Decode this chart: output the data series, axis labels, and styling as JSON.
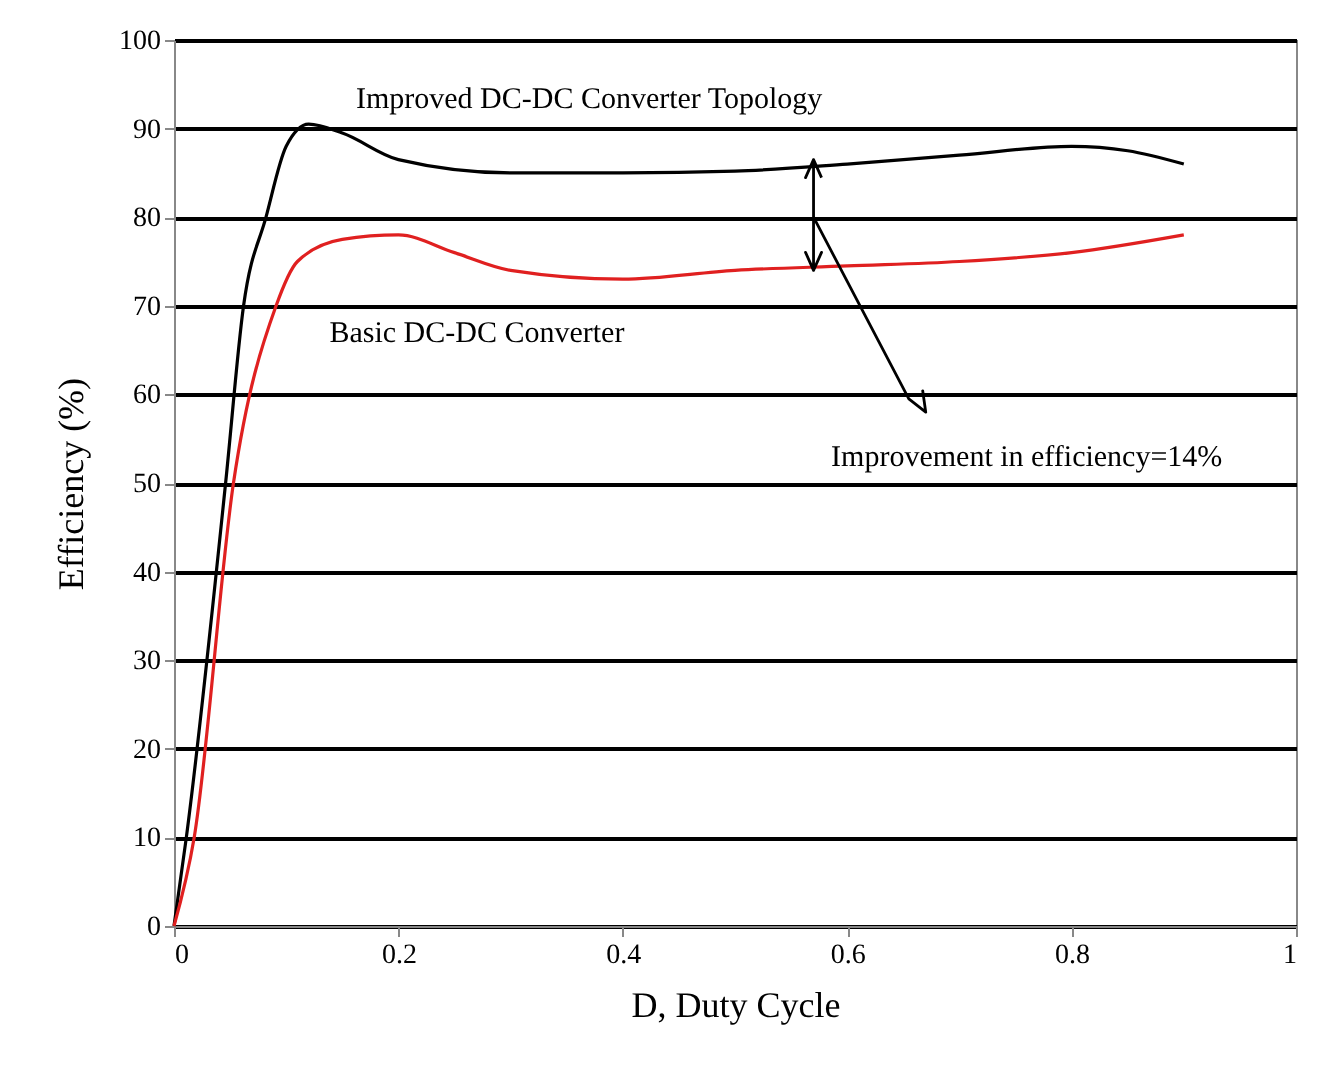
{
  "chart_data": {
    "type": "line",
    "xlabel": "D, Duty Cycle",
    "ylabel": "Efficiency  (%)",
    "xlim": [
      0,
      1
    ],
    "xticks": [
      0,
      0.2,
      0.4,
      0.6,
      0.8,
      1
    ],
    "ylim": [
      0,
      100
    ],
    "yticks": [
      0,
      10,
      20,
      30,
      40,
      50,
      60,
      70,
      80,
      90,
      100
    ],
    "grid": "y",
    "legend": false,
    "series": [
      {
        "name": "Improved DC-DC Converter Topology",
        "color": "#000000",
        "x": [
          0,
          0.011,
          0.046,
          0.062,
          0.082,
          0.1,
          0.12,
          0.15,
          0.2,
          0.3,
          0.4,
          0.5,
          0.6,
          0.7,
          0.8,
          0.85,
          0.9
        ],
        "values": [
          0,
          10,
          50,
          70,
          80,
          88,
          90.5,
          89.5,
          86.5,
          85,
          85,
          85.2,
          86,
          87,
          88,
          87.5,
          86
        ]
      },
      {
        "name": "Basic DC-DC Converter",
        "color": "#e02020",
        "x": [
          0,
          0.018,
          0.053,
          0.091,
          0.11,
          0.15,
          0.2,
          0.25,
          0.3,
          0.4,
          0.5,
          0.6,
          0.7,
          0.8,
          0.9
        ],
        "values": [
          0,
          10,
          50,
          70,
          75,
          77.5,
          78,
          76,
          74,
          73,
          74,
          74.5,
          75,
          76,
          78
        ]
      }
    ],
    "annotations": [
      "Improvement in efficiency=14%"
    ]
  }
}
